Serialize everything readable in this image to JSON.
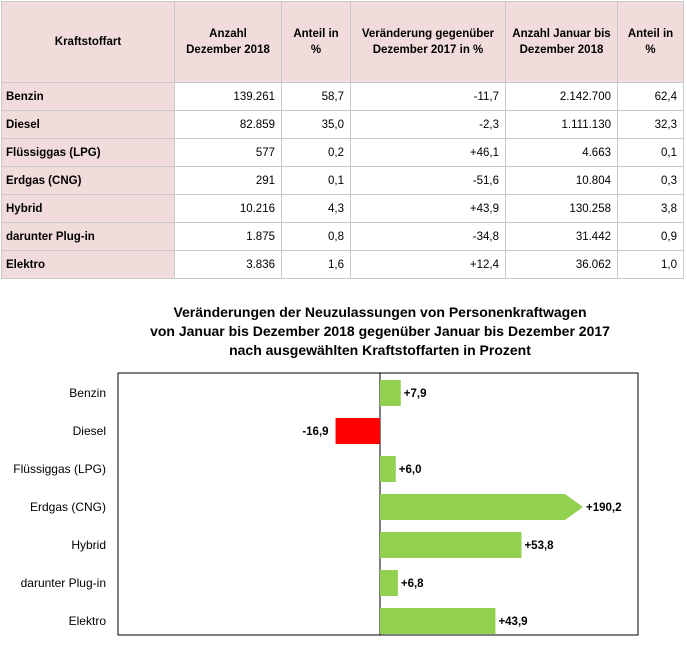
{
  "table": {
    "headers": [
      "Kraftstoffart",
      "Anzahl Dezember 2018",
      "Anteil in %",
      "Veränderung gegenüber Dezember 2017 in %",
      "Anzahl Januar bis Dezember 2018",
      "Anteil in %"
    ],
    "rows": [
      {
        "label": "Benzin",
        "anzahl_dez": "139.261",
        "anteil_dez": "58,7",
        "veraenderung": "-11,7",
        "anzahl_jan_dez": "2.142.700",
        "anteil_jan_dez": "62,4"
      },
      {
        "label": "Diesel",
        "anzahl_dez": "82.859",
        "anteil_dez": "35,0",
        "veraenderung": "-2,3",
        "anzahl_jan_dez": "1.111.130",
        "anteil_jan_dez": "32,3"
      },
      {
        "label": "Flüssiggas (LPG)",
        "anzahl_dez": "577",
        "anteil_dez": "0,2",
        "veraenderung": "+46,1",
        "anzahl_jan_dez": "4.663",
        "anteil_jan_dez": "0,1"
      },
      {
        "label": "Erdgas (CNG)",
        "anzahl_dez": "291",
        "anteil_dez": "0,1",
        "veraenderung": "-51,6",
        "anzahl_jan_dez": "10.804",
        "anteil_jan_dez": "0,3"
      },
      {
        "label": "Hybrid",
        "anzahl_dez": "10.216",
        "anteil_dez": "4,3",
        "veraenderung": "+43,9",
        "anzahl_jan_dez": "130.258",
        "anteil_jan_dez": "3,8"
      },
      {
        "label": "darunter Plug-in",
        "anzahl_dez": "1.875",
        "anteil_dez": "0,8",
        "veraenderung": "-34,8",
        "anzahl_jan_dez": "31.442",
        "anteil_jan_dez": "0,9"
      },
      {
        "label": "Elektro",
        "anzahl_dez": "3.836",
        "anteil_dez": "1,6",
        "veraenderung": "+12,4",
        "anzahl_jan_dez": "36.062",
        "anteil_jan_dez": "1,0"
      }
    ]
  },
  "chart_data": {
    "type": "bar",
    "orientation": "horizontal",
    "title_lines": [
      "Veränderungen der Neuzulassungen von Personenkraftwagen",
      "von Januar bis  Dezember 2018 gegenüber Januar bis Dezember 2017",
      "nach ausgewählten Kraftstoffarten in Prozent"
    ],
    "categories": [
      "Benzin",
      "Diesel",
      "Flüssiggas (LPG)",
      "Erdgas (CNG)",
      "Hybrid",
      "darunter Plug-in",
      "Elektro"
    ],
    "values": [
      7.9,
      -16.9,
      6.0,
      190.2,
      53.8,
      6.8,
      43.9
    ],
    "value_labels": [
      "+7,9",
      "-16,9",
      "+6,0",
      "+190,2",
      "+53,8",
      "+6,8",
      "+43,9"
    ],
    "truncated": [
      false,
      false,
      false,
      true,
      false,
      false,
      false
    ],
    "xlim": [
      -80,
      60
    ],
    "colors": {
      "positive": "#92d050",
      "negative": "#ff0000"
    }
  }
}
